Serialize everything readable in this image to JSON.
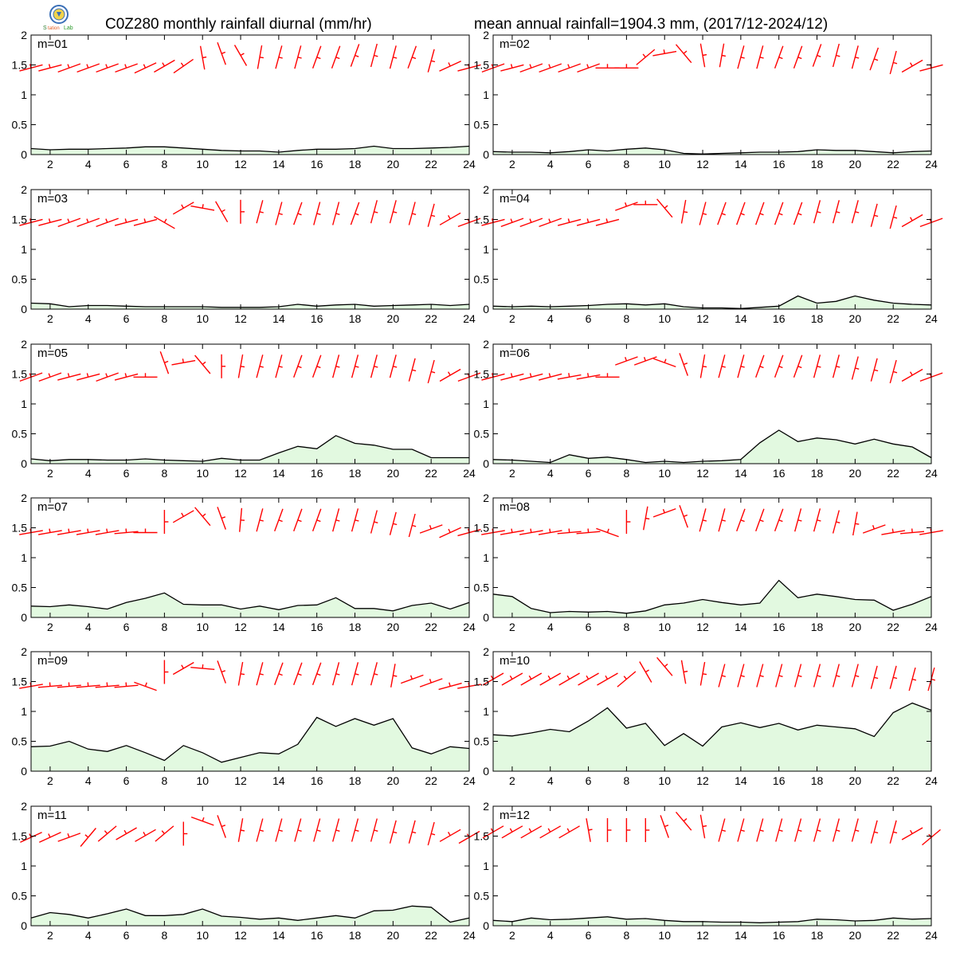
{
  "header": {
    "title_left": "C0Z280 monthly rainfall diurnal (mm/hr)",
    "title_right": "mean annual rainfall=1904.3 mm, (2017/12-2024/12)"
  },
  "logo": {
    "icon": "weather-bureau-seal-logo",
    "text": "Station Lab"
  },
  "colors": {
    "fill": "#e2f9e0",
    "line": "#000000",
    "wind": "#ff0000",
    "axis": "#000000"
  },
  "chart_data": {
    "type": "area",
    "x_ticks": [
      2,
      4,
      6,
      8,
      10,
      12,
      14,
      16,
      18,
      20,
      22,
      24
    ],
    "y_ticks": [
      "0",
      "0.5",
      "1",
      "1.5",
      "2"
    ],
    "xlim": [
      1,
      24
    ],
    "ylim": [
      0,
      2
    ],
    "hours": [
      1,
      2,
      3,
      4,
      5,
      6,
      7,
      8,
      9,
      10,
      11,
      12,
      13,
      14,
      15,
      16,
      17,
      18,
      19,
      20,
      21,
      22,
      23,
      24
    ],
    "panels": [
      {
        "label": "m=01",
        "rain": [
          0.1,
          0.08,
          0.09,
          0.09,
          0.1,
          0.11,
          0.13,
          0.13,
          0.11,
          0.09,
          0.07,
          0.06,
          0.06,
          0.04,
          0.07,
          0.09,
          0.09,
          0.1,
          0.14,
          0.1,
          0.1,
          0.11,
          0.12,
          0.14
        ],
        "wind_y": [
          1.45,
          1.45,
          1.45,
          1.45,
          1.45,
          1.45,
          1.45,
          1.48,
          1.48,
          1.62,
          1.69,
          1.66,
          1.63,
          1.63,
          1.63,
          1.63,
          1.63,
          1.66,
          1.66,
          1.63,
          1.63,
          1.57,
          1.48,
          1.45
        ],
        "wind_dir": [
          165,
          165,
          160,
          160,
          160,
          160,
          155,
          150,
          145,
          260,
          250,
          240,
          280,
          285,
          285,
          290,
          290,
          290,
          285,
          285,
          290,
          285,
          155,
          165
        ]
      },
      {
        "label": "m=02",
        "rain": [
          0.05,
          0.04,
          0.04,
          0.03,
          0.05,
          0.08,
          0.06,
          0.09,
          0.11,
          0.08,
          0.02,
          0.01,
          0.02,
          0.03,
          0.04,
          0.04,
          0.05,
          0.08,
          0.07,
          0.07,
          0.05,
          0.03,
          0.05,
          0.06
        ],
        "wind_y": [
          1.45,
          1.45,
          1.45,
          1.45,
          1.45,
          1.45,
          1.45,
          1.45,
          1.63,
          1.69,
          1.69,
          1.66,
          1.66,
          1.63,
          1.63,
          1.63,
          1.63,
          1.66,
          1.66,
          1.63,
          1.6,
          1.54,
          1.48,
          1.45
        ],
        "wind_dir": [
          160,
          165,
          160,
          160,
          160,
          160,
          180,
          180,
          140,
          170,
          230,
          260,
          280,
          285,
          285,
          290,
          290,
          290,
          285,
          285,
          290,
          285,
          150,
          165
        ]
      },
      {
        "label": "m=03",
        "rain": [
          0.1,
          0.09,
          0.04,
          0.06,
          0.06,
          0.05,
          0.04,
          0.04,
          0.04,
          0.04,
          0.03,
          0.03,
          0.03,
          0.04,
          0.08,
          0.05,
          0.07,
          0.08,
          0.05,
          0.06,
          0.07,
          0.08,
          0.06,
          0.08
        ],
        "wind_y": [
          1.45,
          1.45,
          1.45,
          1.45,
          1.45,
          1.45,
          1.45,
          1.45,
          1.69,
          1.69,
          1.63,
          1.63,
          1.63,
          1.6,
          1.6,
          1.6,
          1.6,
          1.6,
          1.63,
          1.63,
          1.6,
          1.57,
          1.51,
          1.45
        ],
        "wind_dir": [
          165,
          165,
          160,
          160,
          160,
          165,
          165,
          210,
          150,
          190,
          240,
          270,
          285,
          285,
          290,
          285,
          285,
          290,
          285,
          285,
          285,
          285,
          150,
          160
        ]
      },
      {
        "label": "m=04",
        "rain": [
          0.05,
          0.04,
          0.05,
          0.04,
          0.05,
          0.06,
          0.08,
          0.09,
          0.07,
          0.09,
          0.04,
          0.02,
          0.02,
          0.01,
          0.03,
          0.05,
          0.22,
          0.1,
          0.13,
          0.22,
          0.15,
          0.1,
          0.08,
          0.07
        ],
        "wind_y": [
          1.45,
          1.45,
          1.45,
          1.45,
          1.45,
          1.45,
          1.45,
          1.72,
          1.75,
          1.69,
          1.63,
          1.6,
          1.6,
          1.6,
          1.6,
          1.6,
          1.6,
          1.63,
          1.63,
          1.63,
          1.57,
          1.54,
          1.48,
          1.45
        ],
        "wind_dir": [
          165,
          160,
          160,
          160,
          165,
          165,
          165,
          160,
          180,
          230,
          280,
          285,
          290,
          290,
          290,
          290,
          290,
          285,
          285,
          285,
          285,
          285,
          150,
          160
        ]
      },
      {
        "label": "m=05",
        "rain": [
          0.08,
          0.05,
          0.07,
          0.07,
          0.06,
          0.06,
          0.08,
          0.06,
          0.05,
          0.04,
          0.09,
          0.06,
          0.06,
          0.18,
          0.29,
          0.25,
          0.47,
          0.34,
          0.31,
          0.24,
          0.24,
          0.1,
          0.1,
          0.1
        ],
        "wind_y": [
          1.45,
          1.45,
          1.45,
          1.45,
          1.45,
          1.45,
          1.45,
          1.69,
          1.69,
          1.66,
          1.63,
          1.63,
          1.63,
          1.63,
          1.63,
          1.63,
          1.63,
          1.63,
          1.63,
          1.63,
          1.57,
          1.54,
          1.48,
          1.45
        ],
        "wind_dir": [
          160,
          160,
          165,
          165,
          160,
          165,
          180,
          250,
          170,
          230,
          270,
          280,
          285,
          285,
          290,
          290,
          285,
          285,
          285,
          285,
          285,
          285,
          150,
          160
        ]
      },
      {
        "label": "m=06",
        "rain": [
          0.07,
          0.06,
          0.04,
          0.02,
          0.15,
          0.09,
          0.11,
          0.07,
          0.02,
          0.04,
          0.02,
          0.04,
          0.05,
          0.07,
          0.35,
          0.56,
          0.37,
          0.43,
          0.4,
          0.33,
          0.41,
          0.33,
          0.28,
          0.1
        ],
        "wind_y": [
          1.45,
          1.45,
          1.45,
          1.45,
          1.45,
          1.45,
          1.45,
          1.72,
          1.72,
          1.69,
          1.66,
          1.63,
          1.63,
          1.63,
          1.63,
          1.63,
          1.63,
          1.63,
          1.63,
          1.6,
          1.57,
          1.54,
          1.48,
          1.45
        ],
        "wind_dir": [
          165,
          165,
          165,
          165,
          170,
          170,
          180,
          160,
          160,
          200,
          250,
          280,
          285,
          285,
          290,
          290,
          290,
          285,
          285,
          285,
          285,
          285,
          150,
          160
        ]
      },
      {
        "label": "m=07",
        "rain": [
          0.19,
          0.18,
          0.21,
          0.18,
          0.14,
          0.25,
          0.32,
          0.41,
          0.22,
          0.21,
          0.21,
          0.14,
          0.19,
          0.13,
          0.2,
          0.21,
          0.33,
          0.15,
          0.15,
          0.11,
          0.2,
          0.24,
          0.14,
          0.25
        ],
        "wind_y": [
          1.42,
          1.42,
          1.42,
          1.42,
          1.42,
          1.42,
          1.42,
          1.6,
          1.69,
          1.69,
          1.66,
          1.63,
          1.63,
          1.63,
          1.63,
          1.63,
          1.63,
          1.63,
          1.6,
          1.57,
          1.54,
          1.48,
          1.42,
          1.42
        ],
        "wind_dir": [
          170,
          170,
          170,
          170,
          170,
          175,
          180,
          270,
          150,
          230,
          250,
          275,
          285,
          290,
          290,
          290,
          285,
          285,
          285,
          285,
          285,
          160,
          155,
          165
        ]
      },
      {
        "label": "m=08",
        "rain": [
          0.39,
          0.35,
          0.15,
          0.08,
          0.1,
          0.09,
          0.1,
          0.07,
          0.11,
          0.21,
          0.24,
          0.3,
          0.25,
          0.21,
          0.24,
          0.62,
          0.33,
          0.39,
          0.35,
          0.3,
          0.29,
          0.12,
          0.22,
          0.35
        ],
        "wind_y": [
          1.42,
          1.42,
          1.42,
          1.42,
          1.42,
          1.42,
          1.42,
          1.6,
          1.66,
          1.75,
          1.69,
          1.63,
          1.63,
          1.63,
          1.63,
          1.63,
          1.63,
          1.63,
          1.6,
          1.57,
          1.48,
          1.42,
          1.42,
          1.42
        ],
        "wind_dir": [
          170,
          170,
          170,
          170,
          175,
          175,
          200,
          270,
          280,
          160,
          250,
          285,
          285,
          290,
          290,
          290,
          285,
          285,
          285,
          280,
          160,
          170,
          175,
          170
        ]
      },
      {
        "label": "m=09",
        "rain": [
          0.41,
          0.42,
          0.5,
          0.37,
          0.33,
          0.43,
          0.31,
          0.18,
          0.43,
          0.31,
          0.15,
          0.23,
          0.31,
          0.29,
          0.45,
          0.9,
          0.75,
          0.88,
          0.77,
          0.88,
          0.39,
          0.29,
          0.41,
          0.38
        ],
        "wind_y": [
          1.42,
          1.42,
          1.42,
          1.42,
          1.42,
          1.42,
          1.42,
          1.66,
          1.72,
          1.72,
          1.66,
          1.63,
          1.63,
          1.63,
          1.63,
          1.63,
          1.63,
          1.63,
          1.63,
          1.6,
          1.54,
          1.48,
          1.42,
          1.42
        ],
        "wind_dir": [
          170,
          175,
          175,
          175,
          175,
          175,
          200,
          270,
          150,
          185,
          250,
          280,
          285,
          290,
          290,
          290,
          285,
          285,
          285,
          280,
          160,
          160,
          165,
          170
        ]
      },
      {
        "label": "m=10",
        "rain": [
          0.61,
          0.59,
          0.64,
          0.7,
          0.66,
          0.84,
          1.06,
          0.72,
          0.8,
          0.43,
          0.63,
          0.42,
          0.74,
          0.81,
          0.73,
          0.8,
          0.69,
          0.77,
          0.74,
          0.71,
          0.58,
          0.98,
          1.14,
          1.02
        ],
        "wind_y": [
          1.54,
          1.54,
          1.54,
          1.54,
          1.54,
          1.54,
          1.54,
          1.54,
          1.66,
          1.75,
          1.66,
          1.63,
          1.6,
          1.6,
          1.6,
          1.6,
          1.6,
          1.6,
          1.6,
          1.6,
          1.57,
          1.57,
          1.54,
          1.54
        ],
        "wind_dir": [
          150,
          150,
          150,
          150,
          150,
          150,
          150,
          140,
          240,
          230,
          260,
          280,
          285,
          285,
          285,
          285,
          285,
          285,
          285,
          285,
          285,
          285,
          285,
          285
        ]
      },
      {
        "label": "m=11",
        "rain": [
          0.13,
          0.22,
          0.19,
          0.13,
          0.2,
          0.28,
          0.17,
          0.17,
          0.19,
          0.28,
          0.16,
          0.14,
          0.11,
          0.13,
          0.09,
          0.13,
          0.17,
          0.13,
          0.25,
          0.26,
          0.33,
          0.31,
          0.06,
          0.13
        ],
        "wind_y": [
          1.48,
          1.48,
          1.48,
          1.48,
          1.54,
          1.54,
          1.51,
          1.54,
          1.54,
          1.75,
          1.66,
          1.6,
          1.6,
          1.6,
          1.6,
          1.6,
          1.6,
          1.6,
          1.6,
          1.57,
          1.57,
          1.54,
          1.51,
          1.48
        ],
        "wind_dir": [
          155,
          155,
          160,
          130,
          140,
          150,
          150,
          140,
          270,
          200,
          250,
          280,
          285,
          285,
          285,
          285,
          285,
          285,
          285,
          285,
          285,
          285,
          150,
          150
        ]
      },
      {
        "label": "m=12",
        "rain": [
          0.09,
          0.07,
          0.13,
          0.1,
          0.11,
          0.13,
          0.15,
          0.11,
          0.12,
          0.09,
          0.07,
          0.07,
          0.06,
          0.06,
          0.05,
          0.06,
          0.07,
          0.11,
          0.1,
          0.08,
          0.09,
          0.13,
          0.11,
          0.12
        ],
        "wind_y": [
          1.57,
          1.57,
          1.57,
          1.57,
          1.57,
          1.6,
          1.6,
          1.6,
          1.6,
          1.66,
          1.75,
          1.66,
          1.6,
          1.6,
          1.6,
          1.6,
          1.6,
          1.6,
          1.6,
          1.6,
          1.57,
          1.57,
          1.54,
          1.48
        ],
        "wind_dir": [
          150,
          150,
          150,
          150,
          150,
          260,
          270,
          270,
          270,
          250,
          230,
          260,
          285,
          285,
          285,
          285,
          285,
          285,
          285,
          285,
          285,
          285,
          150,
          140
        ]
      }
    ]
  }
}
